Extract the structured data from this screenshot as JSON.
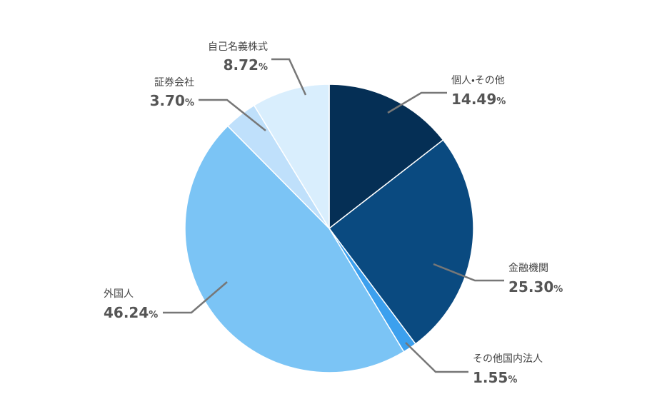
{
  "chart_data": {
    "type": "pie",
    "categories": [
      "個人・その他",
      "金融機関",
      "その他国内法人",
      "外国人",
      "証券会社",
      "自己名義株式"
    ],
    "values": [
      14.49,
      25.3,
      1.55,
      46.24,
      3.7,
      8.72
    ],
    "value_labels": [
      "14.49%",
      "25.30%",
      "1.55%",
      "46.24%",
      "3.70%",
      "8.72%"
    ],
    "colors": [
      "#052f55",
      "#0a4a80",
      "#3ca0ee",
      "#7bc4f5",
      "#bfe0fb",
      "#d9eefd"
    ]
  }
}
